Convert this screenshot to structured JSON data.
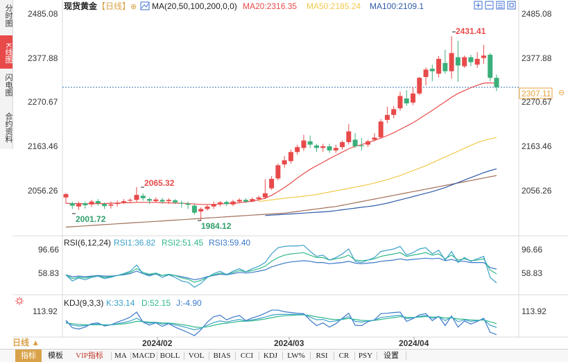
{
  "sidebar": {
    "items": [
      {
        "label": "分时图"
      },
      {
        "label": "K线图",
        "active": true
      },
      {
        "label": "闪电图"
      },
      {
        "label": "合约资料"
      }
    ]
  },
  "header": {
    "symbol": "现货黄金",
    "period_tag": "【日线】",
    "ma_prefix": "MA(20,50,100,200,0,0)",
    "ma20": "MA20:2316.35",
    "ma50": "MA50:2185.24",
    "ma100": "MA100:2109.1",
    "colors": {
      "ma20": "#e84a4a",
      "ma50": "#f2c94c",
      "ma100": "#2d5aa8",
      "ma200": "#a0705a"
    }
  },
  "window_icons": [
    "expand-icon",
    "shrink-icon",
    "reset-icon",
    "maximize-icon"
  ],
  "price_axis": [
    "2485.08",
    "2377.88",
    "2270.67",
    "2163.46",
    "2056.26"
  ],
  "current_price": "2307.11",
  "annotations": {
    "high": "2431.41",
    "mid_high": "2065.32",
    "low1": "2001.72",
    "low2": "1984.12"
  },
  "rsi": {
    "title": "RSI(6,12,24)",
    "rsi1": "RSI1:36.82",
    "rsi2": "RSI2:51.45",
    "rsi3": "RSI3:59.40",
    "axis": [
      "96.66",
      "58.83"
    ]
  },
  "kdj": {
    "title": "KDJ(9,3,3)",
    "k": "K:33.14",
    "d": "D:52.15",
    "j": "J:-4.90",
    "axis": [
      "113.92"
    ]
  },
  "dates": [
    "2024/02",
    "2024/03",
    "2024/04"
  ],
  "period": "日线 ▲",
  "toolbar": [
    "指标",
    "模板",
    "VIP指标",
    "MA",
    "MACD",
    "BOLL",
    "VOL",
    "BIAS",
    "CCI",
    "KDJ",
    "LW%",
    "RSI",
    "CR",
    "PSY",
    "设置"
  ],
  "chart_data": {
    "type": "candlestick",
    "title": "现货黄金【日线】",
    "y_range": [
      1984.12,
      2485.08
    ],
    "candles": [
      [
        2040,
        2048,
        2025,
        2051
      ],
      [
        2026,
        2020,
        2012,
        2030
      ],
      [
        2018,
        2024,
        2010,
        2030
      ],
      [
        2026,
        2021,
        2013,
        2030
      ],
      [
        2023,
        2030,
        2017,
        2034
      ],
      [
        2031,
        2026,
        2020,
        2036
      ],
      [
        2024,
        2019,
        2012,
        2028
      ],
      [
        2020,
        2023,
        2013,
        2030
      ],
      [
        2024,
        2027,
        2018,
        2033
      ],
      [
        2028,
        2031,
        2024,
        2036
      ],
      [
        2032,
        2034,
        2027,
        2038
      ],
      [
        2034,
        2046,
        2029,
        2065
      ],
      [
        2044,
        2038,
        2032,
        2050
      ],
      [
        2036,
        2032,
        2024,
        2040
      ],
      [
        2031,
        2035,
        2027,
        2040
      ],
      [
        2034,
        2030,
        2025,
        2039
      ],
      [
        2031,
        2034,
        2024,
        2038
      ],
      [
        2033,
        2028,
        2024,
        2036
      ],
      [
        2027,
        2025,
        2015,
        2032
      ],
      [
        2025,
        2022,
        2012,
        2030
      ],
      [
        2020,
        2003,
        1998,
        2024
      ],
      [
        2006,
        2012,
        1984,
        2016
      ],
      [
        2012,
        2018,
        2008,
        2022
      ],
      [
        2018,
        2024,
        2012,
        2030
      ],
      [
        2024,
        2028,
        2018,
        2031
      ],
      [
        2029,
        2024,
        2019,
        2032
      ],
      [
        2023,
        2030,
        2019,
        2034
      ],
      [
        2030,
        2034,
        2026,
        2038
      ],
      [
        2034,
        2030,
        2026,
        2038
      ],
      [
        2030,
        2036,
        2028,
        2040
      ],
      [
        2036,
        2040,
        2032,
        2044
      ],
      [
        2040,
        2050,
        2036,
        2084
      ],
      [
        2062,
        2085,
        2058,
        2092
      ],
      [
        2086,
        2118,
        2081,
        2122
      ],
      [
        2120,
        2130,
        2112,
        2140
      ],
      [
        2128,
        2150,
        2122,
        2156
      ],
      [
        2150,
        2162,
        2144,
        2168
      ],
      [
        2160,
        2178,
        2153,
        2192
      ],
      [
        2176,
        2168,
        2160,
        2190
      ],
      [
        2166,
        2160,
        2150,
        2170
      ],
      [
        2160,
        2164,
        2150,
        2170
      ],
      [
        2164,
        2154,
        2148,
        2170
      ],
      [
        2154,
        2160,
        2148,
        2168
      ],
      [
        2162,
        2174,
        2156,
        2178
      ],
      [
        2174,
        2200,
        2168,
        2218
      ],
      [
        2180,
        2164,
        2160,
        2196
      ],
      [
        2166,
        2164,
        2154,
        2184
      ],
      [
        2168,
        2176,
        2162,
        2180
      ],
      [
        2180,
        2185,
        2176,
        2196
      ],
      [
        2186,
        2224,
        2182,
        2230
      ],
      [
        2228,
        2240,
        2220,
        2260
      ],
      [
        2240,
        2254,
        2232,
        2262
      ],
      [
        2256,
        2286,
        2250,
        2296
      ],
      [
        2280,
        2268,
        2262,
        2300
      ],
      [
        2270,
        2292,
        2264,
        2308
      ],
      [
        2292,
        2330,
        2288,
        2332
      ],
      [
        2332,
        2350,
        2312,
        2355
      ],
      [
        2352,
        2346,
        2322,
        2362
      ],
      [
        2340,
        2376,
        2331,
        2383
      ],
      [
        2366,
        2346,
        2340,
        2398
      ],
      [
        2346,
        2390,
        2328,
        2431
      ],
      [
        2380,
        2360,
        2320,
        2420
      ],
      [
        2358,
        2380,
        2354,
        2384
      ],
      [
        2380,
        2368,
        2358,
        2386
      ],
      [
        2362,
        2376,
        2354,
        2392
      ],
      [
        2378,
        2384,
        2364,
        2410
      ],
      [
        2386,
        2330,
        2322,
        2390
      ],
      [
        2330,
        2307,
        2298,
        2338
      ]
    ],
    "ma20": [
      2026,
      2025,
      2025,
      2025,
      2025,
      2025,
      2025,
      2026,
      2026,
      2027,
      2027,
      2028,
      2028,
      2028,
      2028,
      2027,
      2027,
      2026,
      2026,
      2025,
      2024,
      2023,
      2023,
      2023,
      2024,
      2025,
      2026,
      2027,
      2029,
      2031,
      2034,
      2038,
      2045,
      2054,
      2064,
      2075,
      2087,
      2098,
      2108,
      2117,
      2125,
      2134,
      2142,
      2150,
      2158,
      2164,
      2168,
      2173,
      2178,
      2184,
      2190,
      2197,
      2205,
      2213,
      2221,
      2231,
      2241,
      2251,
      2262,
      2272,
      2283,
      2292,
      2299,
      2306,
      2312,
      2317,
      2318,
      2316.35
    ],
    "ma50": [
      2030,
      2032,
      2034,
      2036,
      2038,
      2040,
      2041,
      2043,
      2045,
      2047,
      2050,
      2053,
      2056,
      2059,
      2062,
      2065,
      2068,
      2071,
      2075,
      2079,
      2083,
      2088,
      2093,
      2099,
      2105,
      2111,
      2117,
      2124,
      2131,
      2138,
      2145,
      2152,
      2159,
      2166,
      2173,
      2178,
      2182,
      2185.24
    ],
    "ma100": [
      1996,
      1997,
      1998,
      1999,
      2000,
      2001,
      2002,
      2003,
      2004,
      2005,
      2006,
      2008,
      2010,
      2012,
      2014,
      2016,
      2018,
      2020,
      2023,
      2026,
      2030,
      2034,
      2038,
      2042,
      2046,
      2050,
      2054,
      2059,
      2064,
      2070,
      2076,
      2082,
      2088,
      2094,
      2100,
      2105,
      2109.1
    ],
    "ma200": [
      1968,
      1969,
      1970,
      1971,
      1972,
      1973,
      1974,
      1975,
      1976,
      1977,
      1978,
      1979,
      1980,
      1981,
      1982,
      1983,
      1984,
      1985,
      1986,
      1987,
      1988,
      1989,
      1990,
      1991,
      1992,
      1993,
      1994,
      1995,
      1996,
      1997,
      1998,
      1999,
      2000,
      2001,
      2002,
      2004,
      2006,
      2008,
      2010,
      2012,
      2014,
      2016,
      2018,
      2021,
      2024,
      2027,
      2030,
      2033,
      2036,
      2039,
      2042,
      2045,
      2048,
      2051,
      2054,
      2057,
      2060,
      2063,
      2066,
      2069,
      2072,
      2075,
      2078,
      2081,
      2084,
      2087,
      2090,
      2093
    ],
    "rsi_range": [
      20,
      110
    ],
    "rsi1": [
      50,
      40,
      45,
      42,
      46,
      48,
      44,
      46,
      49,
      52,
      56,
      66,
      52,
      48,
      52,
      46,
      50,
      46,
      40,
      38,
      30,
      36,
      46,
      52,
      56,
      50,
      56,
      60,
      55,
      60,
      64,
      70,
      84,
      94,
      96,
      97,
      97,
      98,
      88,
      80,
      82,
      74,
      78,
      84,
      92,
      72,
      70,
      74,
      78,
      88,
      90,
      92,
      96,
      82,
      86,
      92,
      94,
      84,
      90,
      74,
      88,
      70,
      78,
      72,
      76,
      80,
      46,
      36.82
    ],
    "rsi2": [
      50,
      44,
      46,
      45,
      47,
      48,
      46,
      47,
      49,
      51,
      54,
      60,
      54,
      51,
      53,
      49,
      51,
      49,
      45,
      43,
      38,
      41,
      46,
      50,
      53,
      51,
      54,
      57,
      55,
      57,
      60,
      64,
      72,
      78,
      82,
      84,
      85,
      86,
      82,
      78,
      78,
      74,
      76,
      78,
      82,
      74,
      73,
      74,
      76,
      80,
      82,
      84,
      86,
      80,
      82,
      84,
      86,
      82,
      84,
      76,
      82,
      74,
      76,
      73,
      74,
      76,
      58,
      51.45
    ],
    "rsi3": [
      50,
      47,
      48,
      47,
      48,
      49,
      48,
      48,
      49,
      50,
      52,
      56,
      52,
      50,
      51,
      49,
      50,
      49,
      47,
      45,
      42,
      44,
      47,
      49,
      51,
      50,
      52,
      54,
      53,
      54,
      56,
      58,
      63,
      66,
      69,
      71,
      72,
      73,
      72,
      70,
      70,
      68,
      69,
      70,
      72,
      69,
      68,
      69,
      70,
      72,
      73,
      74,
      76,
      74,
      75,
      76,
      77,
      76,
      77,
      73,
      75,
      72,
      72,
      70,
      70,
      70,
      62,
      59.4
    ],
    "kdj_range": [
      -10,
      130
    ],
    "kdj_k": [
      60,
      45,
      40,
      42,
      48,
      50,
      44,
      46,
      52,
      58,
      66,
      80,
      62,
      55,
      58,
      50,
      54,
      46,
      38,
      30,
      20,
      28,
      44,
      58,
      66,
      60,
      68,
      74,
      66,
      72,
      78,
      86,
      96,
      100,
      100,
      100,
      100,
      100,
      86,
      72,
      74,
      62,
      66,
      76,
      88,
      64,
      60,
      66,
      70,
      84,
      88,
      92,
      96,
      78,
      82,
      90,
      94,
      80,
      88,
      68,
      86,
      62,
      72,
      64,
      68,
      74,
      44,
      33.14
    ],
    "kdj_d": [
      55,
      52,
      48,
      46,
      46,
      47,
      46,
      46,
      48,
      51,
      56,
      64,
      63,
      60,
      59,
      56,
      55,
      52,
      47,
      42,
      35,
      32,
      36,
      43,
      51,
      54,
      59,
      64,
      65,
      67,
      71,
      76,
      83,
      89,
      93,
      95,
      97,
      98,
      94,
      87,
      83,
      76,
      73,
      74,
      79,
      74,
      69,
      68,
      69,
      74,
      79,
      83,
      88,
      85,
      84,
      86,
      89,
      86,
      87,
      81,
      83,
      76,
      75,
      71,
      70,
      71,
      62,
      52.15
    ],
    "kdj_j": [
      70,
      31,
      24,
      34,
      52,
      56,
      40,
      46,
      60,
      72,
      86,
      112,
      60,
      45,
      56,
      38,
      52,
      34,
      20,
      6,
      -10,
      20,
      60,
      88,
      96,
      72,
      86,
      94,
      68,
      82,
      92,
      106,
      122,
      122,
      114,
      110,
      106,
      104,
      70,
      42,
      56,
      34,
      52,
      80,
      106,
      44,
      42,
      62,
      72,
      104,
      106,
      110,
      112,
      64,
      78,
      98,
      104,
      68,
      90,
      42,
      92,
      34,
      66,
      50,
      64,
      80,
      8,
      -4.9
    ]
  }
}
